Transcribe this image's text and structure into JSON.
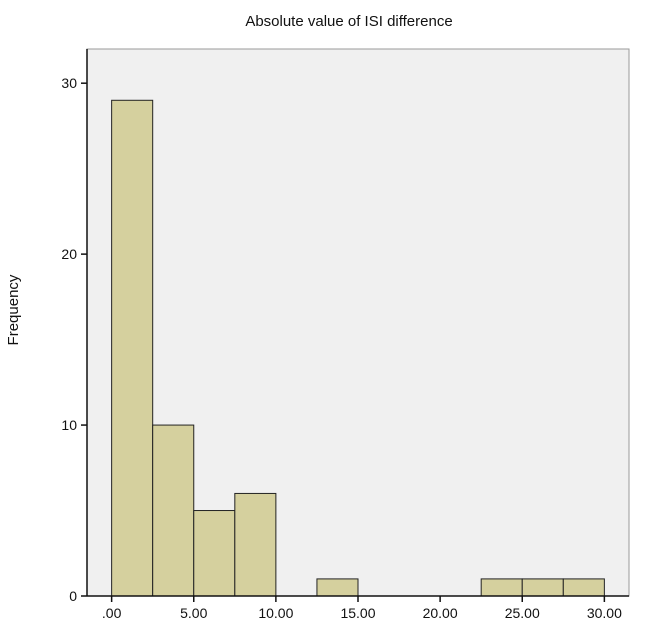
{
  "chart_data": {
    "type": "bar",
    "title": "Absolute value of ISI difference",
    "xlabel": "",
    "ylabel": "Frequency",
    "bins": [
      {
        "start": 0.0,
        "end": 2.5,
        "count": 29
      },
      {
        "start": 2.5,
        "end": 5.0,
        "count": 10
      },
      {
        "start": 5.0,
        "end": 7.5,
        "count": 5
      },
      {
        "start": 7.5,
        "end": 10.0,
        "count": 6
      },
      {
        "start": 12.5,
        "end": 15.0,
        "count": 1
      },
      {
        "start": 22.5,
        "end": 25.0,
        "count": 1
      },
      {
        "start": 25.0,
        "end": 27.5,
        "count": 1
      },
      {
        "start": 27.5,
        "end": 30.0,
        "count": 1
      }
    ],
    "x_ticks": [
      {
        "value": 0,
        "label": ".00"
      },
      {
        "value": 5,
        "label": "5.00"
      },
      {
        "value": 10,
        "label": "10.00"
      },
      {
        "value": 15,
        "label": "15.00"
      },
      {
        "value": 20,
        "label": "20.00"
      },
      {
        "value": 25,
        "label": "25.00"
      },
      {
        "value": 30,
        "label": "30.00"
      }
    ],
    "y_ticks": [
      {
        "value": 0,
        "label": "0"
      },
      {
        "value": 10,
        "label": "10"
      },
      {
        "value": 20,
        "label": "20"
      },
      {
        "value": 30,
        "label": "30"
      }
    ],
    "xlim": [
      -1.5,
      31.5
    ],
    "ylim": [
      0,
      32
    ],
    "grid": false,
    "legend": "none",
    "colors": {
      "plot_background": "#f0f0f0",
      "bar_fill": "#d5d09e",
      "bar_stroke": "#222222",
      "axis": "#111111",
      "frame": "#9a9a9a"
    }
  }
}
